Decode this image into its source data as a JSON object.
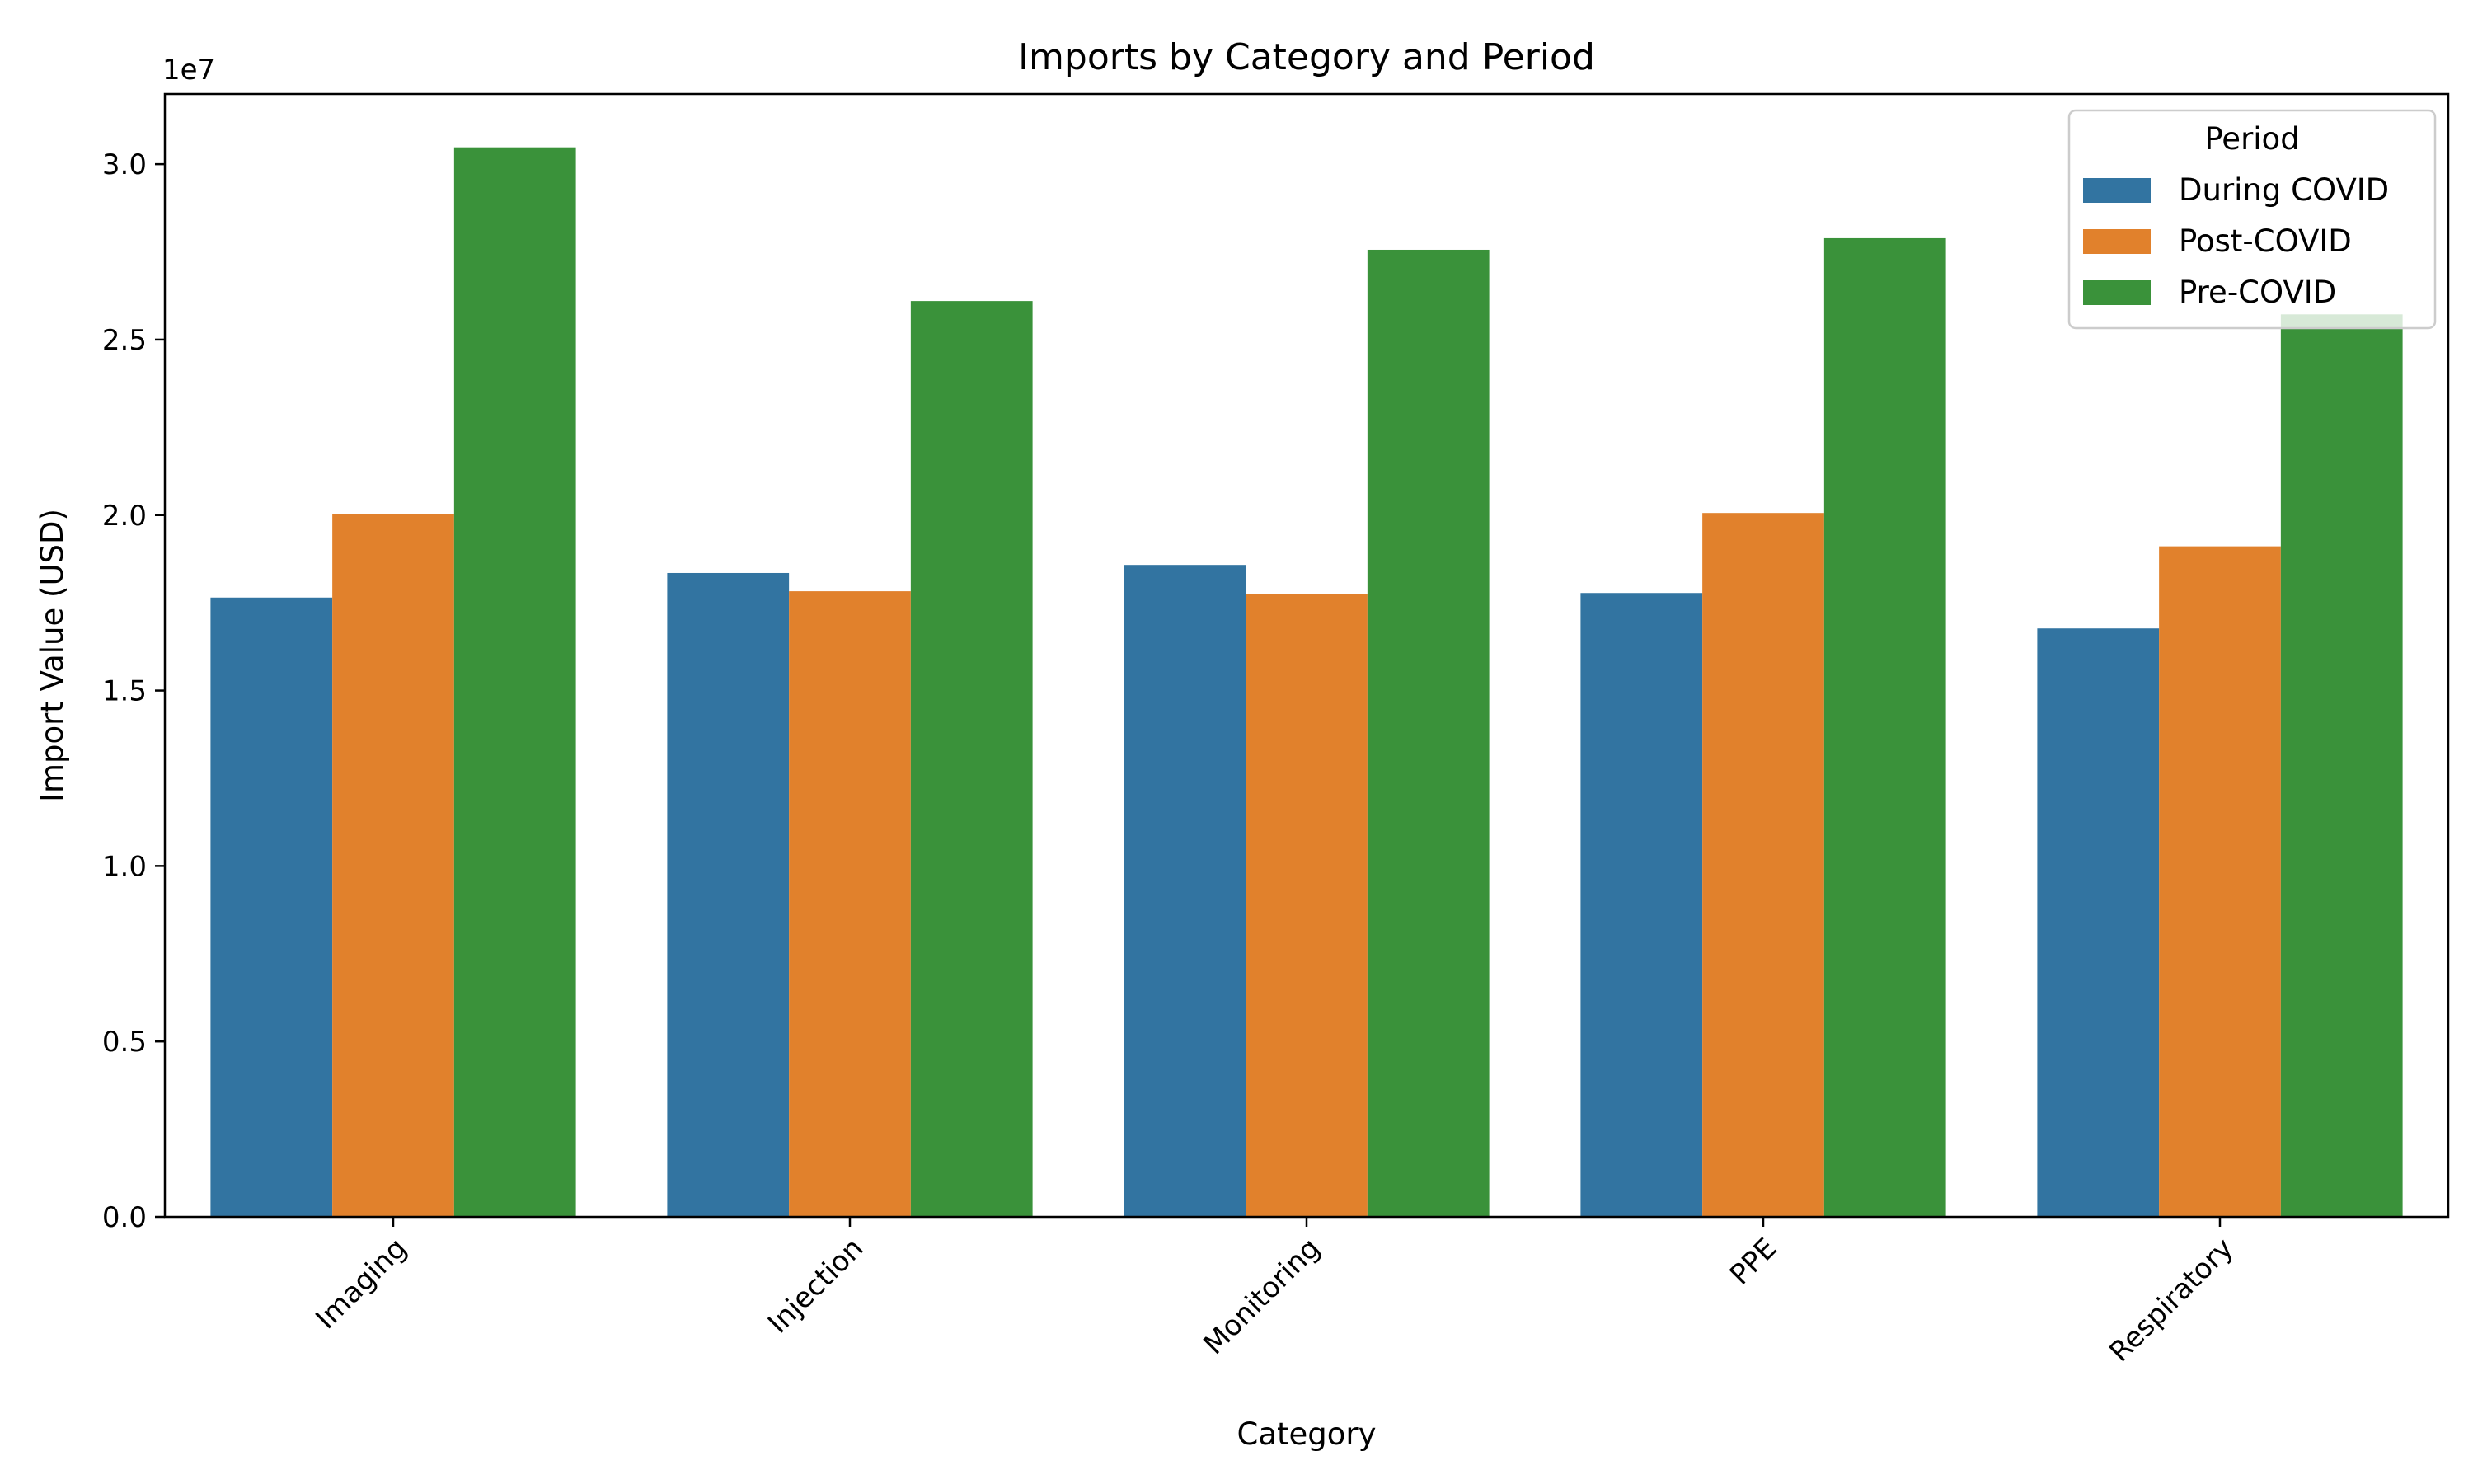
{
  "chart_data": {
    "type": "bar",
    "title": "Imports by Category and Period",
    "xlabel": "Category",
    "ylabel": "Import Value (USD)",
    "y_offset_label": "1e7",
    "categories": [
      "Imaging",
      "Injection",
      "Monitoring",
      "PPE",
      "Respiratory"
    ],
    "ylim": [
      0,
      32000000
    ],
    "yticks": [
      0,
      5000000,
      10000000,
      15000000,
      20000000,
      25000000,
      30000000
    ],
    "ytick_labels": [
      "0.0",
      "0.5",
      "1.0",
      "1.5",
      "2.0",
      "2.5",
      "3.0"
    ],
    "grid": false,
    "legend": {
      "title": "Period",
      "placement": "top-right"
    },
    "series": [
      {
        "name": "During COVID",
        "color": "#3274a1",
        "values": [
          17650000,
          18350000,
          18580000,
          17780000,
          16770000
        ]
      },
      {
        "name": "Post-COVID",
        "color": "#e1812c",
        "values": [
          20020000,
          17830000,
          17740000,
          20060000,
          19110000
        ]
      },
      {
        "name": "Pre-COVID",
        "color": "#3a923a",
        "values": [
          30480000,
          26100000,
          27560000,
          27890000,
          25720000
        ]
      }
    ]
  }
}
